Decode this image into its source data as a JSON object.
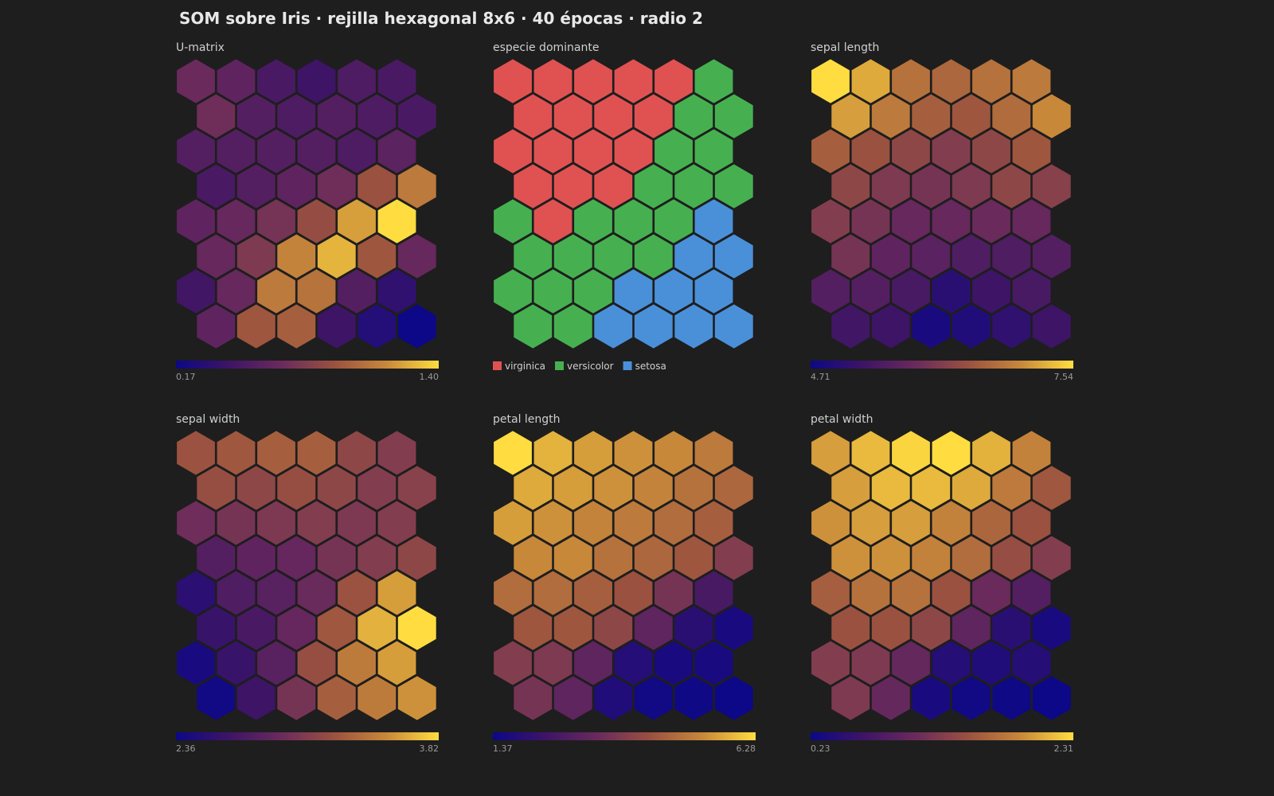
{
  "title": "SOM sobre Iris · rejilla hexagonal 8x6 · 40 épocas · radio 2",
  "chart_data": [
    {
      "type": "hexmap",
      "title": "U-matrix",
      "colormap": [
        "#0d0887",
        "#3d1466",
        "#6a2a5c",
        "#9a5140",
        "#c8883a",
        "#ffdd40"
      ],
      "zlim": [
        0.17,
        1.4
      ],
      "zticks": [
        {
          "value": 0.17,
          "label": "0.17"
        },
        {
          "value": 1.4,
          "label": "1.40"
        }
      ],
      "values": [
        [
          0.66,
          0.6,
          0.48,
          0.42,
          0.51,
          0.48
        ],
        [
          0.69,
          0.54,
          0.51,
          0.54,
          0.51,
          0.48
        ],
        [
          0.54,
          0.54,
          0.54,
          0.54,
          0.51,
          0.58
        ],
        [
          0.48,
          0.54,
          0.6,
          0.69,
          0.91,
          1.09
        ],
        [
          0.6,
          0.64,
          0.72,
          0.88,
          1.22,
          1.4
        ],
        [
          0.64,
          0.76,
          1.13,
          1.28,
          0.93,
          0.64
        ],
        [
          0.44,
          0.64,
          1.09,
          1.06,
          0.54,
          0.35
        ],
        [
          0.6,
          0.93,
          0.97,
          0.42,
          0.29,
          0.17
        ]
      ]
    },
    {
      "type": "hexclass",
      "title": "especie dominante",
      "classes": [
        {
          "name": "virginica",
          "color": "#e05252"
        },
        {
          "name": "versicolor",
          "color": "#46b050"
        },
        {
          "name": "setosa",
          "color": "#4a90d9"
        }
      ],
      "values": [
        [
          "virginica",
          "virginica",
          "virginica",
          "virginica",
          "virginica",
          "versicolor"
        ],
        [
          "virginica",
          "virginica",
          "virginica",
          "virginica",
          "versicolor",
          "versicolor"
        ],
        [
          "virginica",
          "virginica",
          "virginica",
          "virginica",
          "versicolor",
          "versicolor"
        ],
        [
          "virginica",
          "virginica",
          "virginica",
          "versicolor",
          "versicolor",
          "versicolor"
        ],
        [
          "versicolor",
          "virginica",
          "versicolor",
          "versicolor",
          "versicolor",
          "setosa"
        ],
        [
          "versicolor",
          "versicolor",
          "versicolor",
          "versicolor",
          "setosa",
          "setosa"
        ],
        [
          "versicolor",
          "versicolor",
          "versicolor",
          "setosa",
          "setosa",
          "setosa"
        ],
        [
          "versicolor",
          "versicolor",
          "setosa",
          "setosa",
          "setosa",
          "setosa"
        ]
      ]
    },
    {
      "type": "hexmap",
      "title": "sepal length",
      "colormap": [
        "#0d0887",
        "#3d1466",
        "#6a2a5c",
        "#9a5140",
        "#c8883a",
        "#ffdd40"
      ],
      "zlim": [
        4.71,
        7.54
      ],
      "zticks": [
        {
          "value": 4.71,
          "label": "4.71"
        },
        {
          "value": 7.54,
          "label": "7.54"
        }
      ],
      "values": [
        [
          7.54,
          7.2,
          6.75,
          6.63,
          6.75,
          6.83
        ],
        [
          7.12,
          6.83,
          6.55,
          6.46,
          6.69,
          6.97
        ],
        [
          6.55,
          6.41,
          6.27,
          6.13,
          6.27,
          6.46
        ],
        [
          6.27,
          6.07,
          5.98,
          6.07,
          6.27,
          6.18
        ],
        [
          6.13,
          5.98,
          5.79,
          5.79,
          5.84,
          5.79
        ],
        [
          5.98,
          5.7,
          5.64,
          5.5,
          5.5,
          5.56
        ],
        [
          5.56,
          5.56,
          5.42,
          5.05,
          5.28,
          5.42
        ],
        [
          5.33,
          5.28,
          4.85,
          4.94,
          5.13,
          5.28
        ]
      ]
    },
    {
      "type": "hexmap",
      "title": "sepal width",
      "colormap": [
        "#0d0887",
        "#3d1466",
        "#6a2a5c",
        "#9a5140",
        "#c8883a",
        "#ffdd40"
      ],
      "zlim": [
        2.36,
        3.82
      ],
      "zticks": [
        {
          "value": 2.36,
          "label": "2.36"
        },
        {
          "value": 3.82,
          "label": "3.82"
        }
      ],
      "values": [
        [
          3.24,
          3.27,
          3.31,
          3.31,
          3.16,
          3.09
        ],
        [
          3.21,
          3.16,
          3.21,
          3.16,
          3.09,
          3.12
        ],
        [
          2.97,
          3.02,
          3.06,
          3.09,
          3.06,
          3.09
        ],
        [
          2.8,
          2.87,
          2.91,
          3.02,
          3.09,
          3.16
        ],
        [
          2.54,
          2.77,
          2.83,
          2.94,
          3.24,
          3.6
        ],
        [
          2.62,
          2.73,
          2.91,
          3.27,
          3.67,
          3.82
        ],
        [
          2.43,
          2.62,
          2.83,
          3.21,
          3.46,
          3.6
        ],
        [
          2.39,
          2.65,
          3.02,
          3.31,
          3.46,
          3.56
        ]
      ]
    },
    {
      "type": "hexmap",
      "title": "petal length",
      "colormap": [
        "#0d0887",
        "#3d1466",
        "#6a2a5c",
        "#9a5140",
        "#c8883a",
        "#ffdd40"
      ],
      "zlim": [
        1.37,
        6.28
      ],
      "zticks": [
        {
          "value": 1.37,
          "label": "1.37"
        },
        {
          "value": 6.28,
          "label": "6.28"
        }
      ],
      "values": [
        [
          6.28,
          5.79,
          5.54,
          5.4,
          5.3,
          5.05
        ],
        [
          5.69,
          5.54,
          5.4,
          5.2,
          4.91,
          4.71
        ],
        [
          5.54,
          5.4,
          5.2,
          5.05,
          4.81,
          4.56
        ],
        [
          5.3,
          5.3,
          4.91,
          4.71,
          4.41,
          3.83
        ],
        [
          4.81,
          4.81,
          4.56,
          4.32,
          3.58,
          2.6
        ],
        [
          4.41,
          4.41,
          4.07,
          3.09,
          1.96,
          1.62
        ],
        [
          3.83,
          3.73,
          3.09,
          1.86,
          1.62,
          1.62
        ],
        [
          3.58,
          3.09,
          1.76,
          1.47,
          1.42,
          1.37
        ]
      ]
    },
    {
      "type": "hexmap",
      "title": "petal width",
      "colormap": [
        "#0d0887",
        "#3d1466",
        "#6a2a5c",
        "#9a5140",
        "#c8883a",
        "#ffdd40"
      ],
      "zlim": [
        0.23,
        2.31
      ],
      "zticks": [
        {
          "value": 0.23,
          "label": "0.23"
        },
        {
          "value": 2.31,
          "label": "2.31"
        }
      ],
      "values": [
        [
          2.0,
          2.14,
          2.27,
          2.31,
          2.1,
          1.85
        ],
        [
          2.0,
          2.14,
          2.14,
          2.06,
          1.79,
          1.52
        ],
        [
          1.94,
          2.0,
          2.0,
          1.85,
          1.64,
          1.48
        ],
        [
          1.94,
          1.94,
          1.85,
          1.69,
          1.44,
          1.27
        ],
        [
          1.58,
          1.73,
          1.73,
          1.48,
          1.06,
          0.85
        ],
        [
          1.48,
          1.48,
          1.37,
          0.96,
          0.48,
          0.33
        ],
        [
          1.27,
          1.23,
          1.02,
          0.44,
          0.4,
          0.44
        ],
        [
          1.23,
          1.02,
          0.33,
          0.27,
          0.25,
          0.23
        ]
      ]
    }
  ]
}
